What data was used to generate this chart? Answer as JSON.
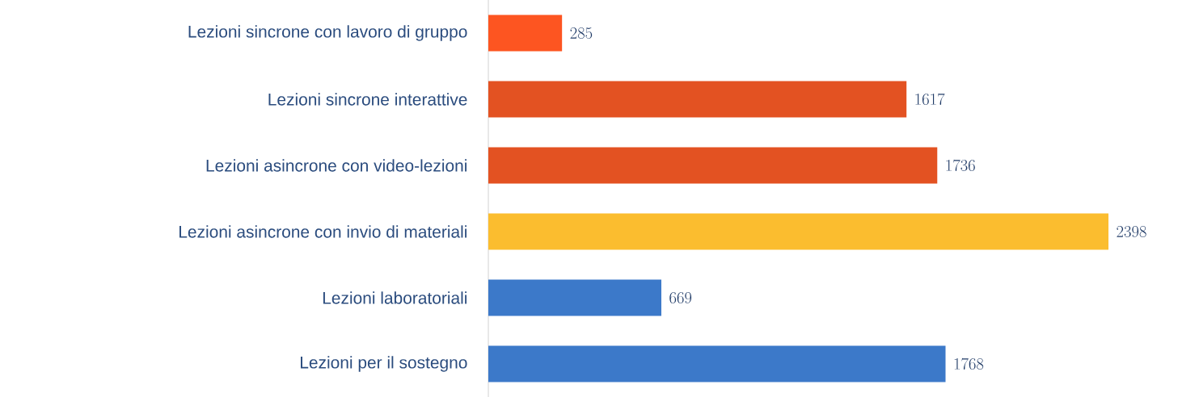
{
  "chart_data": {
    "type": "bar",
    "orientation": "horizontal",
    "categories": [
      "Lezioni sincrone con lavoro di gruppo",
      "Lezioni sincrone interattive",
      "Lezioni asincrone con video-lezioni",
      "Lezioni asincrone con invio di materiali",
      "Lezioni laboratoriali",
      "Lezioni per il sostegno"
    ],
    "values": [
      285,
      1617,
      1736,
      2398,
      669,
      1768
    ],
    "colors": [
      "#fd5521",
      "#e35222",
      "#e35222",
      "#fbbd2f",
      "#3c79c9",
      "#3c79c9"
    ],
    "data_labels": true
  }
}
